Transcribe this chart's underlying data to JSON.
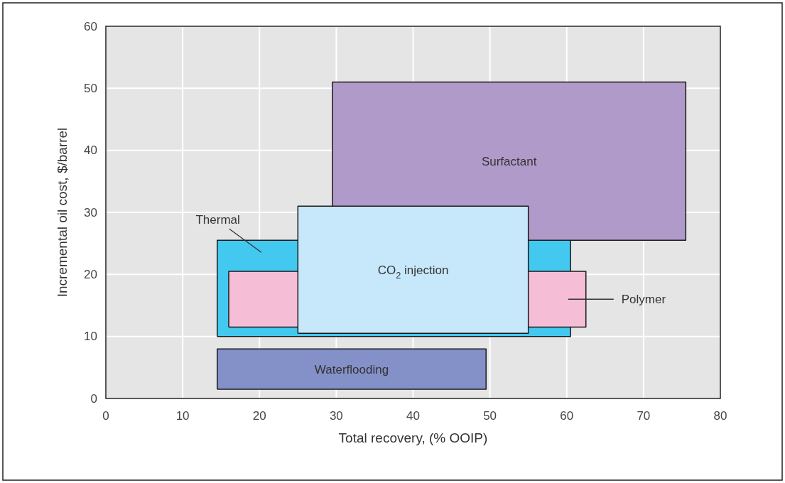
{
  "chart_data": {
    "type": "area",
    "xlabel": "Total recovery, (% OOIP)",
    "ylabel": "Incremental oil cost, $/barrel",
    "xlim": [
      0,
      80
    ],
    "xticks": [
      0,
      10,
      20,
      30,
      40,
      50,
      60,
      70,
      80
    ],
    "ylim": [
      0,
      60
    ],
    "yticks": [
      0,
      10,
      20,
      30,
      40,
      50,
      60
    ],
    "grid": true,
    "series": [
      {
        "name": "Waterflooding",
        "color": "#8490c8",
        "x": [
          14.5,
          49.5,
          49.5,
          14.5,
          14.5
        ],
        "values": [
          1.5,
          1.5,
          8,
          8,
          1.5
        ]
      },
      {
        "name": "Thermal",
        "color": "#43c8f0",
        "x": [
          14.5,
          60.5,
          60.5,
          14.5,
          14.5
        ],
        "values": [
          10,
          10,
          25.5,
          25.5,
          10
        ]
      },
      {
        "name": "Polymer",
        "color": "#f6bed6",
        "x": [
          16,
          62.5,
          62.5,
          16,
          16
        ],
        "values": [
          11.5,
          11.5,
          20.5,
          20.5,
          11.5
        ]
      },
      {
        "name": "Surfactant",
        "color": "#b09aca",
        "x": [
          55,
          75.5,
          75.5,
          29.5,
          29.5
        ],
        "values": [
          25.5,
          25.5,
          51,
          51,
          31
        ]
      },
      {
        "name": "CO$_{2}$ injection",
        "color": "#c7e8fa",
        "x": [
          25,
          55,
          55,
          25,
          25
        ],
        "values": [
          10.5,
          10.5,
          31,
          31,
          10.5
        ]
      }
    ]
  }
}
